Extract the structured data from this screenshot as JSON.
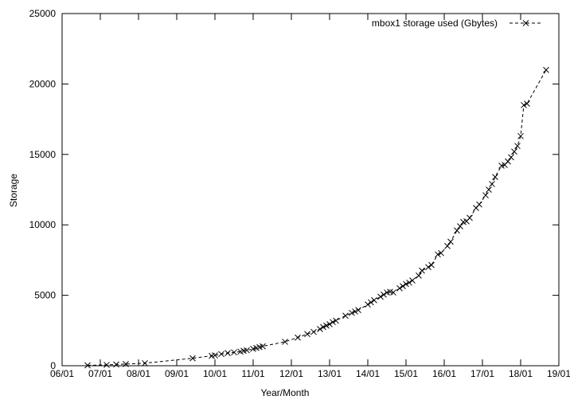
{
  "chart_data": {
    "type": "line",
    "title": "",
    "xlabel": "Year/Month",
    "ylabel": "Storage",
    "grid": false,
    "legend_position": "top-right",
    "x_ticks": [
      "06/01",
      "07/01",
      "08/01",
      "09/01",
      "10/01",
      "11/01",
      "12/01",
      "13/01",
      "14/01",
      "15/01",
      "16/01",
      "17/01",
      "18/01",
      "19/01"
    ],
    "y_ticks": [
      0,
      5000,
      10000,
      15000,
      20000,
      25000
    ],
    "xlim": [
      "2006-01",
      "2019-01"
    ],
    "ylim": [
      0,
      25000
    ],
    "series": [
      {
        "name": "mbox1 storage used (Gbytes)",
        "style": "dashed line with x markers",
        "color": "#000000",
        "points": [
          [
            "2006-09",
            30
          ],
          [
            "2007-03",
            60
          ],
          [
            "2007-06",
            90
          ],
          [
            "2007-09",
            120
          ],
          [
            "2008-03",
            180
          ],
          [
            "2009-06",
            530
          ],
          [
            "2009-12",
            700
          ],
          [
            "2010-01",
            740
          ],
          [
            "2010-03",
            830
          ],
          [
            "2010-05",
            900
          ],
          [
            "2010-07",
            950
          ],
          [
            "2010-09",
            1000
          ],
          [
            "2010-10",
            1060
          ],
          [
            "2010-11",
            1100
          ],
          [
            "2011-01",
            1200
          ],
          [
            "2011-02",
            1260
          ],
          [
            "2011-03",
            1320
          ],
          [
            "2011-04",
            1380
          ],
          [
            "2011-11",
            1700
          ],
          [
            "2012-03",
            2000
          ],
          [
            "2012-06",
            2250
          ],
          [
            "2012-08",
            2400
          ],
          [
            "2012-10",
            2600
          ],
          [
            "2012-11",
            2750
          ],
          [
            "2012-12",
            2850
          ],
          [
            "2013-01",
            2950
          ],
          [
            "2013-02",
            3100
          ],
          [
            "2013-03",
            3200
          ],
          [
            "2013-06",
            3550
          ],
          [
            "2013-08",
            3750
          ],
          [
            "2013-09",
            3850
          ],
          [
            "2013-10",
            3950
          ],
          [
            "2014-01",
            4350
          ],
          [
            "2014-02",
            4500
          ],
          [
            "2014-03",
            4650
          ],
          [
            "2014-05",
            4900
          ],
          [
            "2014-06",
            5050
          ],
          [
            "2014-07",
            5200
          ],
          [
            "2014-08",
            5250
          ],
          [
            "2014-09",
            5200
          ],
          [
            "2014-11",
            5500
          ],
          [
            "2014-12",
            5650
          ],
          [
            "2015-01",
            5800
          ],
          [
            "2015-02",
            5900
          ],
          [
            "2015-03",
            6050
          ],
          [
            "2015-05",
            6400
          ],
          [
            "2015-06",
            6750
          ],
          [
            "2015-08",
            7000
          ],
          [
            "2015-09",
            7150
          ],
          [
            "2015-11",
            7900
          ],
          [
            "2015-12",
            8000
          ],
          [
            "2016-02",
            8500
          ],
          [
            "2016-03",
            8800
          ],
          [
            "2016-05",
            9600
          ],
          [
            "2016-06",
            9900
          ],
          [
            "2016-07",
            10200
          ],
          [
            "2016-08",
            10250
          ],
          [
            "2016-09",
            10500
          ],
          [
            "2016-11",
            11200
          ],
          [
            "2016-12",
            11450
          ],
          [
            "2017-02",
            12100
          ],
          [
            "2017-03",
            12500
          ],
          [
            "2017-04",
            12900
          ],
          [
            "2017-05",
            13400
          ],
          [
            "2017-07",
            14200
          ],
          [
            "2017-08",
            14250
          ],
          [
            "2017-09",
            14500
          ],
          [
            "2017-10",
            14800
          ],
          [
            "2017-11",
            15200
          ],
          [
            "2017-12",
            15600
          ],
          [
            "2018-01",
            16300
          ],
          [
            "2018-02",
            18500
          ],
          [
            "2018-03",
            18600
          ],
          [
            "2018-09",
            21000
          ]
        ]
      }
    ]
  }
}
